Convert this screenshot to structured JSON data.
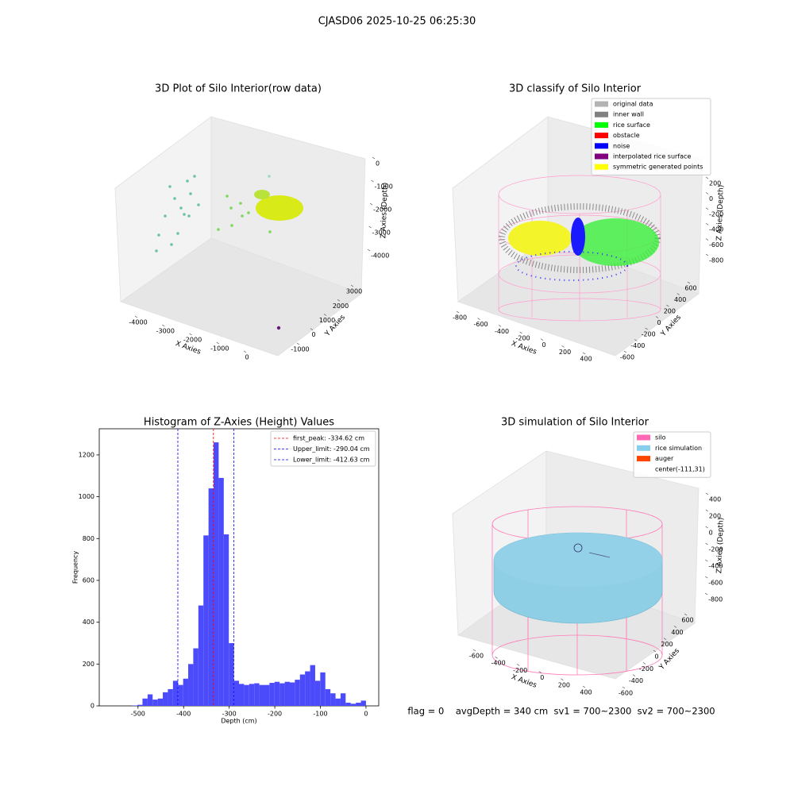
{
  "title": "CJASD06 2025-10-25 06:25:30",
  "footer": "flag = 0    avgDepth = 340 cm  sv1 = 700~2300  sv2 = 700~2300",
  "chart_data": [
    {
      "type": "scatter3d",
      "title": "3D Plot of Silo Interior(row data)",
      "xlabel": "X Axies",
      "ylabel": "Y Axies",
      "zlabel": "Z Axies (Depth)",
      "xlim": [
        -4600,
        700
      ],
      "xticks": [
        -4000,
        -3000,
        -2000,
        -1000,
        0
      ],
      "ylim": [
        -1500,
        3600
      ],
      "yticks": [
        -1000,
        0,
        1000,
        2000,
        3000
      ],
      "zlim": [
        -4500,
        300
      ],
      "zticks": [
        0,
        -1000,
        -2000,
        -3000,
        -4000
      ]
    },
    {
      "type": "scatter3d",
      "title": "3D classify of Silo Interior",
      "xlabel": "X Axies",
      "ylabel": "Y Axies",
      "zlabel": "Z Axies (Depth)",
      "xlim": [
        -900,
        500
      ],
      "xticks": [
        -800,
        -600,
        -400,
        -200,
        0,
        200,
        400
      ],
      "ylim": [
        -700,
        700
      ],
      "yticks": [
        -600,
        -400,
        -200,
        0,
        200,
        400,
        600
      ],
      "zlim": [
        -900,
        400
      ],
      "zticks": [
        200,
        0,
        -200,
        -400,
        -600,
        -800
      ],
      "legend_loc": "upper right",
      "legend": [
        {
          "name": "original data",
          "color": "#b3b3b3"
        },
        {
          "name": "inner wall",
          "color": "#808080"
        },
        {
          "name": "rice surface",
          "color": "#00ff00"
        },
        {
          "name": "obstacle",
          "color": "#ff0000"
        },
        {
          "name": "noise",
          "color": "#0000ff"
        },
        {
          "name": "interpolated rice surface",
          "color": "#800080"
        },
        {
          "name": "symmetric generated points",
          "color": "#ffff00"
        }
      ]
    },
    {
      "type": "histogram",
      "title": "Histogram of Z-Axies (Height) Values",
      "xlabel": "Depth (cm)",
      "ylabel": "Frequency",
      "color": "#4b4bfb",
      "bins": [
        -557.0,
        -545.9,
        -534.7,
        -523.6,
        -512.4,
        -501.3,
        -490.2,
        -479.0,
        -467.9,
        -456.7,
        -445.6,
        -434.5,
        -423.3,
        -412.2,
        -401.0,
        -389.9,
        -378.8,
        -367.6,
        -356.5,
        -345.3,
        -334.2,
        -323.1,
        -311.9,
        -300.8,
        -289.6,
        -278.5,
        -267.4,
        -256.2,
        -245.1,
        -233.9,
        -222.8,
        -211.7,
        -200.5,
        -189.4,
        -178.2,
        -167.1,
        -156.0,
        -144.8,
        -133.7,
        -122.5,
        -111.4,
        -100.3,
        -89.1,
        -78.0,
        -66.8,
        -55.7,
        -44.6,
        -33.4,
        -22.3,
        -11.1,
        0.0
      ],
      "values": [
        0,
        0,
        0,
        0,
        2,
        5,
        35,
        55,
        30,
        35,
        65,
        80,
        120,
        100,
        130,
        200,
        275,
        480,
        815,
        1040,
        1260,
        1090,
        820,
        300,
        120,
        105,
        100,
        105,
        108,
        100,
        100,
        110,
        115,
        108,
        115,
        112,
        125,
        150,
        165,
        195,
        120,
        160,
        80,
        60,
        35,
        60,
        15,
        10,
        15,
        25
      ],
      "xlim": [
        -585,
        28
      ],
      "xticks": [
        -500,
        -400,
        -300,
        -200,
        -100,
        0
      ],
      "ylim": [
        0,
        1325
      ],
      "yticks": [
        0,
        200,
        400,
        600,
        800,
        1000,
        1200
      ],
      "legend_loc": "upper right",
      "lines": [
        {
          "name": "first_peak: -334.62 cm",
          "value": -334.62,
          "color": "#ff0000"
        },
        {
          "name": "Upper_limit: -290.04 cm",
          "value": -290.04,
          "color": "#0000ff"
        },
        {
          "name": "Lower_limit: -412.63 cm",
          "value": -412.63,
          "color": "#0000ff"
        }
      ]
    },
    {
      "type": "scatter3d",
      "title": "3D simulation of Silo Interior",
      "xlabel": "X Axies",
      "ylabel": "Y Axies",
      "zlabel": "Z Axies (Depth)",
      "xlim": [
        -750,
        550
      ],
      "xticks": [
        -600,
        -400,
        -200,
        0,
        200,
        400
      ],
      "ylim": [
        -700,
        700
      ],
      "yticks": [
        -600,
        -400,
        -200,
        0,
        200,
        400,
        600
      ],
      "zlim": [
        -900,
        500
      ],
      "zticks": [
        400,
        200,
        0,
        -200,
        -400,
        -600,
        -800
      ],
      "legend_loc": "upper right",
      "legend": [
        {
          "name": "silo",
          "color": "#ff69b4"
        },
        {
          "name": "rice simulation",
          "color": "#87ceeb"
        },
        {
          "name": "auger",
          "color": "#ff4500"
        },
        {
          "name": "center(-111,31)"
        }
      ]
    }
  ]
}
